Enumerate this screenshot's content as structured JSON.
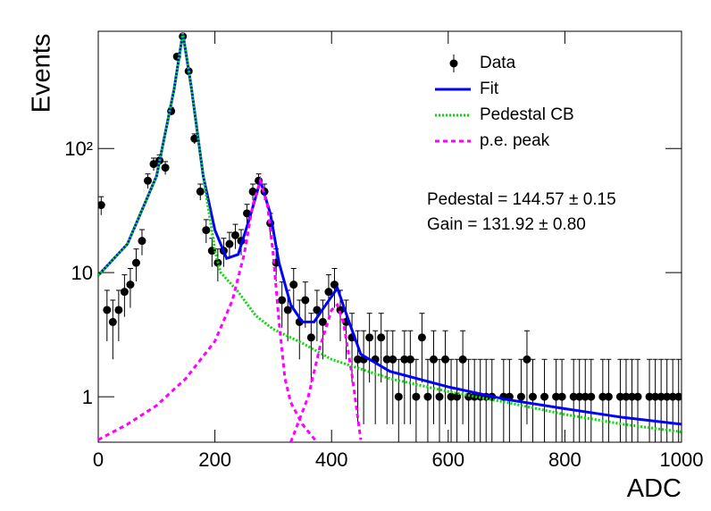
{
  "chart_data": {
    "type": "line",
    "x_label": "ADC",
    "y_label": "Events",
    "log_y": true,
    "xlim": [
      0,
      1000
    ],
    "ylim": [
      0.43,
      880
    ],
    "xticks": [
      0,
      200,
      400,
      600,
      800,
      1000
    ],
    "yticks": [
      1,
      10,
      {
        "value": 100,
        "label": "10²"
      }
    ],
    "legend": "upper right",
    "annotations": [
      "Pedestal = 144.57 ± 0.15",
      "Gain = 131.92 ± 0.80"
    ],
    "series": [
      {
        "name": "Data",
        "color": "#000000",
        "style": "points",
        "x": [
          5,
          15,
          25,
          35,
          45,
          55,
          65,
          75,
          85,
          95,
          105,
          115,
          125,
          135,
          145,
          155,
          165,
          175,
          185,
          195,
          205,
          215,
          225,
          235,
          245,
          255,
          265,
          275,
          285,
          295,
          305,
          315,
          325,
          335,
          345,
          355,
          365,
          375,
          385,
          395,
          405,
          415,
          425,
          435,
          445,
          455,
          465,
          475,
          485,
          495,
          505,
          515,
          525,
          535,
          545,
          555,
          565,
          575,
          585,
          595,
          605,
          615,
          625,
          635,
          645,
          655,
          665,
          675,
          685,
          695,
          705,
          715,
          725,
          735,
          745,
          755,
          765,
          775,
          785,
          795,
          805,
          815,
          825,
          835,
          845,
          855,
          865,
          875,
          885,
          895,
          905,
          915,
          925,
          935,
          945,
          955,
          965,
          975,
          985,
          995
        ],
        "values": [
          35,
          5,
          4,
          5,
          7,
          8,
          12,
          18,
          55,
          75,
          80,
          70,
          200,
          550,
          800,
          420,
          120,
          45,
          22,
          15,
          12,
          15,
          17,
          20,
          18,
          30,
          45,
          55,
          45,
          25,
          12,
          6,
          5,
          8,
          4,
          6,
          3,
          5,
          4,
          7,
          8,
          5,
          4,
          3,
          2,
          2,
          3,
          2,
          3,
          2,
          2,
          1,
          2,
          2,
          1,
          3,
          1,
          2,
          1,
          2,
          1,
          1,
          2,
          1,
          1,
          1,
          1,
          1,
          null,
          1,
          1,
          null,
          1,
          2,
          1,
          null,
          1,
          null,
          1,
          1,
          null,
          1,
          1,
          1,
          1,
          null,
          1,
          1,
          null,
          1,
          1,
          1,
          1,
          null,
          1,
          1,
          1,
          1,
          1,
          1
        ],
        "errors": [
          5.9,
          2.2,
          2,
          2.2,
          2.6,
          2.8,
          3.5,
          4.2,
          7.4,
          8.7,
          8.9,
          8.4,
          14,
          23,
          28,
          20,
          11,
          6.7,
          4.7,
          3.9,
          3.5,
          3.9,
          4.1,
          4.5,
          4.2,
          5.5,
          6.7,
          7.4,
          6.7,
          5,
          3.5,
          2.4,
          2.2,
          2.8,
          2,
          2.4,
          1.7,
          2.2,
          2,
          2.6,
          2.8,
          2.2,
          2,
          1.7,
          1.4,
          1.4,
          1.7,
          1.4,
          1.7,
          1.4,
          1.4,
          1,
          1.4,
          1.4,
          1,
          1.7,
          1,
          1.4,
          1,
          1.4,
          1,
          1,
          1.4,
          1,
          1,
          1,
          1,
          1,
          null,
          1,
          1,
          null,
          1,
          1.4,
          1,
          null,
          1,
          null,
          1,
          1,
          null,
          1,
          1,
          1,
          1,
          null,
          1,
          1,
          null,
          1,
          1,
          1,
          1,
          null,
          1,
          1,
          1,
          1,
          1,
          1
        ]
      },
      {
        "name": "Fit",
        "color": "#0000ff",
        "style": "solid",
        "x": [
          0,
          50,
          100,
          130,
          145,
          160,
          180,
          200,
          220,
          240,
          260,
          278,
          295,
          310,
          330,
          350,
          370,
          390,
          410,
          430,
          450,
          500,
          600,
          700,
          800,
          900,
          1000
        ],
        "values": [
          9.5,
          17,
          60,
          300,
          850,
          300,
          60,
          22,
          13,
          14,
          28,
          55,
          30,
          12,
          5.5,
          4,
          4,
          5.5,
          7.5,
          4,
          2.2,
          1.6,
          1.2,
          0.95,
          0.8,
          0.68,
          0.6
        ]
      },
      {
        "name": "Pedestal CB",
        "color": "#00dd00",
        "style": "dotted",
        "x": [
          0,
          50,
          100,
          130,
          145,
          160,
          180,
          200,
          210,
          240,
          270,
          300,
          350,
          400,
          500,
          600,
          700,
          800,
          900,
          1000
        ],
        "values": [
          9.5,
          17,
          60,
          300,
          850,
          300,
          60,
          15,
          10,
          7,
          4.5,
          3.5,
          2.7,
          2,
          1.4,
          1.1,
          0.9,
          0.72,
          0.6,
          0.52
        ]
      },
      {
        "name": "p.e. peak",
        "color": "#ff00ff",
        "style": "dashed",
        "x": [
          0,
          50,
          100,
          150,
          200,
          230,
          250,
          265,
          278,
          290,
          300,
          310,
          320,
          330,
          350,
          375,
          null,
          330,
          360,
          380,
          400,
          410,
          420,
          435,
          450
        ],
        "values": [
          0.45,
          0.6,
          0.85,
          1.4,
          2.8,
          6,
          14,
          35,
          55,
          35,
          14,
          4,
          1.4,
          0.9,
          0.6,
          0.43,
          null,
          0.43,
          1,
          2.5,
          5,
          5.5,
          4,
          1.5,
          0.45
        ]
      }
    ]
  }
}
